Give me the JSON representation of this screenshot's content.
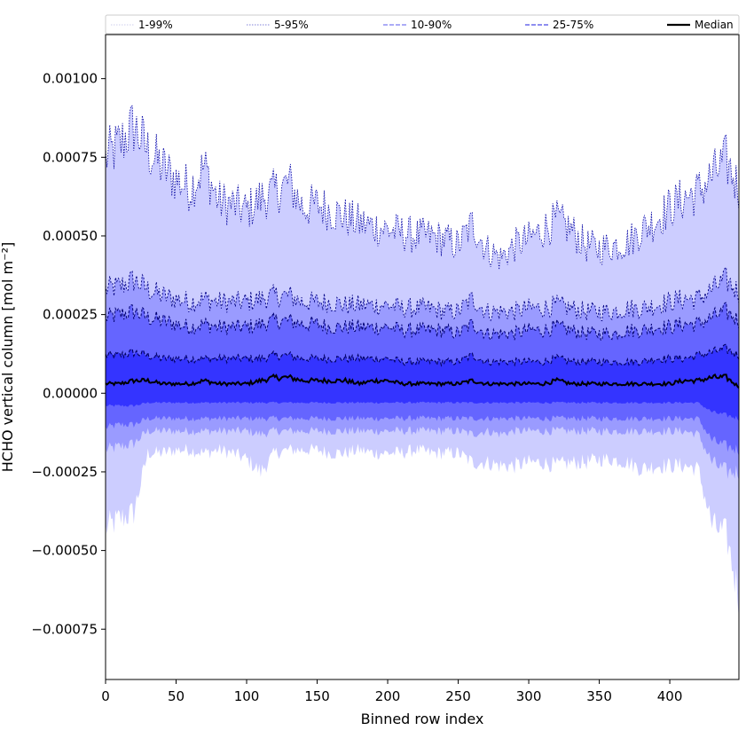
{
  "chart_data": {
    "type": "area",
    "title": "",
    "xlabel": "Binned row index",
    "ylabel": "HCHO vertical column [mol m⁻²]",
    "xlim": [
      0,
      449
    ],
    "ylim": [
      -0.00091,
      0.00114
    ],
    "xticks": [
      0,
      50,
      100,
      150,
      200,
      250,
      300,
      350,
      400
    ],
    "xtick_labels": [
      "0",
      "50",
      "100",
      "150",
      "200",
      "250",
      "300",
      "350",
      "400"
    ],
    "yticks": [
      -0.00075,
      -0.0005,
      -0.00025,
      0.0,
      0.00025,
      0.0005,
      0.00075,
      0.001
    ],
    "ytick_labels": [
      "−0.00075",
      "−0.00050",
      "−0.00025",
      "0.00000",
      "0.00025",
      "0.00050",
      "0.00075",
      "0.00100"
    ],
    "grid": false,
    "legend_position": "top",
    "legend": [
      {
        "label": "1-99%",
        "style": "dotted",
        "color": "#d8d8f0"
      },
      {
        "label": "5-95%",
        "style": "dotted",
        "color": "#9a9ae0"
      },
      {
        "label": "10-90%",
        "style": "dashed",
        "color": "#7a7af0"
      },
      {
        "label": "25-75%",
        "style": "dashed",
        "color": "#4a4ae8"
      },
      {
        "label": "Median",
        "style": "solid",
        "color": "#000000"
      }
    ],
    "x": [
      0,
      10,
      20,
      30,
      40,
      50,
      60,
      70,
      80,
      90,
      100,
      110,
      120,
      130,
      140,
      150,
      160,
      170,
      180,
      190,
      200,
      210,
      220,
      230,
      240,
      250,
      260,
      270,
      280,
      290,
      300,
      310,
      320,
      330,
      340,
      350,
      360,
      370,
      380,
      390,
      400,
      410,
      420,
      430,
      440,
      449
    ],
    "series": [
      {
        "name": "1-99%",
        "fill": "#cccdff",
        "lower": [
          -0.00043,
          -0.0004,
          -0.00038,
          -0.00019,
          -0.00019,
          -0.00018,
          -0.00018,
          -0.00019,
          -0.00018,
          -0.00019,
          -0.00021,
          -0.00025,
          -0.00019,
          -0.00018,
          -0.00018,
          -0.00018,
          -0.00019,
          -0.00019,
          -0.00018,
          -0.00019,
          -0.00019,
          -0.00019,
          -0.00018,
          -0.00019,
          -0.00019,
          -0.00019,
          -0.00022,
          -0.00022,
          -0.00023,
          -0.00023,
          -0.00022,
          -0.00022,
          -0.00023,
          -0.00022,
          -0.00022,
          -0.00021,
          -0.00021,
          -0.00022,
          -0.00024,
          -0.00023,
          -0.00023,
          -0.00023,
          -0.00024,
          -0.00042,
          -0.00045,
          -0.00065
        ],
        "upper": [
          0.00075,
          0.00079,
          0.00085,
          0.00077,
          0.00072,
          0.00068,
          0.00065,
          0.00072,
          0.00061,
          0.0006,
          0.00058,
          0.00062,
          0.00064,
          0.00067,
          0.00059,
          0.0006,
          0.00058,
          0.00056,
          0.00054,
          0.00053,
          0.00052,
          0.00051,
          0.0005,
          0.0005,
          0.00049,
          0.00047,
          0.00054,
          0.00046,
          0.00043,
          0.00047,
          0.00049,
          0.00052,
          0.00055,
          0.00052,
          0.00047,
          0.00046,
          0.00047,
          0.00048,
          0.00052,
          0.00055,
          0.00059,
          0.00062,
          0.00064,
          0.00069,
          0.00074,
          0.00065
        ]
      },
      {
        "name": "5-95%",
        "fill": "#9a9bff",
        "lower": [
          -0.00018,
          -0.00017,
          -0.00016,
          -0.00012,
          -0.00012,
          -0.00012,
          -0.00012,
          -0.00012,
          -0.00012,
          -0.00012,
          -0.00012,
          -0.00013,
          -0.00012,
          -0.00012,
          -0.00012,
          -0.00012,
          -0.00012,
          -0.00012,
          -0.00012,
          -0.00012,
          -0.00012,
          -0.00012,
          -0.00012,
          -0.00012,
          -0.00012,
          -0.00012,
          -0.00013,
          -0.00012,
          -0.00013,
          -0.00012,
          -0.00012,
          -0.00012,
          -0.00012,
          -0.00012,
          -0.00012,
          -0.00012,
          -0.00012,
          -0.00012,
          -0.00012,
          -0.00012,
          -0.00012,
          -0.00012,
          -0.00013,
          -0.00022,
          -0.00025,
          -0.00025
        ],
        "upper": [
          0.00033,
          0.00034,
          0.00036,
          0.00033,
          0.00031,
          0.0003,
          0.00029,
          0.0003,
          0.00029,
          0.00029,
          0.00029,
          0.0003,
          0.00031,
          0.00031,
          0.00029,
          0.00029,
          0.00029,
          0.00028,
          0.00028,
          0.00028,
          0.00028,
          0.00027,
          0.00027,
          0.00027,
          0.00026,
          0.00026,
          0.0003,
          0.00026,
          0.00026,
          0.00026,
          0.00027,
          0.00027,
          0.00028,
          0.00027,
          0.00026,
          0.00026,
          0.00026,
          0.00027,
          0.00027,
          0.00028,
          0.00029,
          0.0003,
          0.0003,
          0.00033,
          0.00036,
          0.00032
        ]
      },
      {
        "name": "10-90%",
        "fill": "#6565ff",
        "lower": [
          -0.00011,
          -0.0001,
          -0.0001,
          -8e-05,
          -8e-05,
          -8e-05,
          -8e-05,
          -8e-05,
          -8e-05,
          -8e-05,
          -8e-05,
          -8e-05,
          -8e-05,
          -8e-05,
          -8e-05,
          -8e-05,
          -8e-05,
          -8e-05,
          -8e-05,
          -8e-05,
          -8e-05,
          -8e-05,
          -8e-05,
          -8e-05,
          -8e-05,
          -8e-05,
          -8e-05,
          -8e-05,
          -8e-05,
          -8e-05,
          -8e-05,
          -8e-05,
          -8e-05,
          -8e-05,
          -8e-05,
          -8e-05,
          -8e-05,
          -8e-05,
          -8e-05,
          -8e-05,
          -8e-05,
          -8e-05,
          -8e-05,
          -0.00015,
          -0.00017,
          -0.00018
        ],
        "upper": [
          0.00024,
          0.00025,
          0.00026,
          0.00024,
          0.00023,
          0.00022,
          0.00021,
          0.00022,
          0.00021,
          0.00021,
          0.00021,
          0.00022,
          0.00023,
          0.00023,
          0.00022,
          0.00022,
          0.00021,
          0.00021,
          0.00021,
          0.00021,
          0.00021,
          0.0002,
          0.0002,
          0.0002,
          0.0002,
          0.00019,
          0.00022,
          0.00019,
          0.00019,
          0.00019,
          0.0002,
          0.0002,
          0.00021,
          0.0002,
          0.00019,
          0.00019,
          0.00019,
          0.0002,
          0.0002,
          0.00021,
          0.00021,
          0.00022,
          0.00022,
          0.00024,
          0.00026,
          0.00023
        ]
      },
      {
        "name": "25-75%",
        "fill": "#3434ff",
        "lower": [
          -4e-05,
          -4e-05,
          -4e-05,
          -3e-05,
          -3e-05,
          -3e-05,
          -3e-05,
          -3e-05,
          -3e-05,
          -3e-05,
          -3e-05,
          -3e-05,
          -3e-05,
          -3e-05,
          -3e-05,
          -3e-05,
          -3e-05,
          -3e-05,
          -3e-05,
          -3e-05,
          -3e-05,
          -3e-05,
          -3e-05,
          -3e-05,
          -3e-05,
          -3e-05,
          -3e-05,
          -3e-05,
          -3e-05,
          -3e-05,
          -3e-05,
          -3e-05,
          -3e-05,
          -3e-05,
          -3e-05,
          -3e-05,
          -3e-05,
          -3e-05,
          -3e-05,
          -3e-05,
          -3e-05,
          -3e-05,
          -3e-05,
          -6e-05,
          -7e-05,
          -8e-05
        ],
        "upper": [
          0.00012,
          0.00012,
          0.00013,
          0.00012,
          0.00011,
          0.00011,
          0.00011,
          0.00011,
          0.00011,
          0.00011,
          0.00011,
          0.00011,
          0.00012,
          0.00012,
          0.00011,
          0.00011,
          0.00011,
          0.00011,
          0.00011,
          0.00011,
          0.00011,
          0.0001,
          0.0001,
          0.0001,
          0.0001,
          0.0001,
          0.00012,
          0.0001,
          0.0001,
          0.0001,
          0.0001,
          0.0001,
          0.00011,
          0.0001,
          0.0001,
          0.0001,
          0.0001,
          0.0001,
          0.0001,
          0.00011,
          0.00011,
          0.00011,
          0.00012,
          0.00013,
          0.00014,
          0.00012
        ]
      },
      {
        "name": "Median",
        "color": "#000000",
        "values": [
          3e-05,
          3e-05,
          4e-05,
          4e-05,
          3e-05,
          3e-05,
          3e-05,
          4e-05,
          3e-05,
          3e-05,
          3e-05,
          4e-05,
          5e-05,
          5e-05,
          4e-05,
          4e-05,
          4e-05,
          4e-05,
          3e-05,
          4e-05,
          4e-05,
          3e-05,
          3e-05,
          3e-05,
          3e-05,
          3e-05,
          4e-05,
          3e-05,
          3e-05,
          3e-05,
          3e-05,
          3e-05,
          4e-05,
          3e-05,
          3e-05,
          3e-05,
          3e-05,
          3e-05,
          3e-05,
          3e-05,
          3e-05,
          4e-05,
          4e-05,
          5e-05,
          5e-05,
          2e-05
        ]
      }
    ]
  }
}
